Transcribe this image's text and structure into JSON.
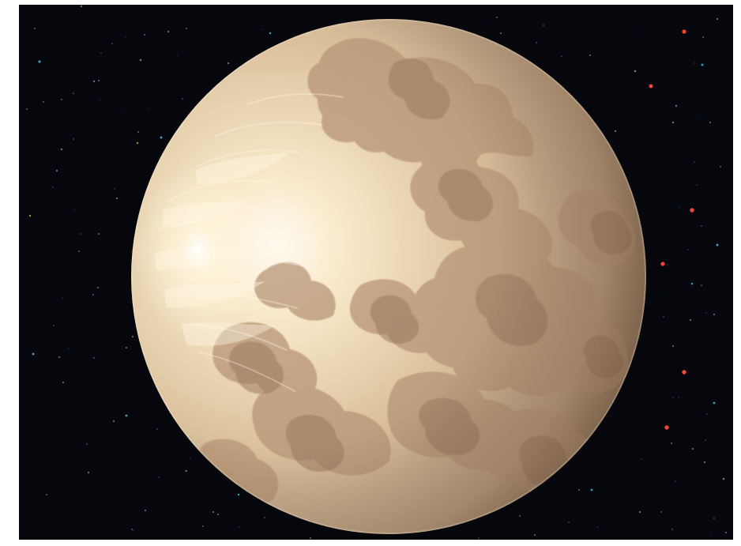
{
  "scene": {
    "subject": "planet",
    "colors": {
      "page_background": "#ffffff",
      "space": "#05070c",
      "planet_light": "#fbf1da",
      "planet_mid": "#dcc39f",
      "planet_shadow": "#a98a6a",
      "surface_patch": "#b59374",
      "surface_patch_dark": "#9b7a5f",
      "star_blue": "#56c8f0",
      "star_red": "#ff4a3d",
      "star_yellow": "#e2c95c",
      "star_gray": "#8e9aa8"
    }
  }
}
